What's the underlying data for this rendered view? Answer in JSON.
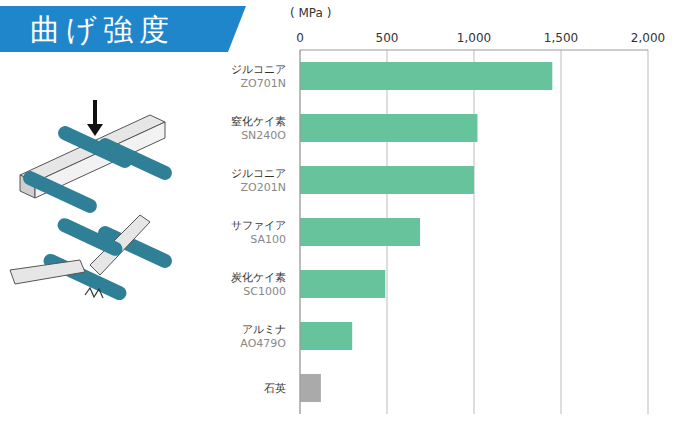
{
  "chart_data": {
    "type": "bar",
    "title": "曲げ強度",
    "x_label": "( MPa )",
    "orientation": "horizontal",
    "categories": [
      "ジルコニア\nZO701N",
      "窒化ケイ素\nSN240O",
      "ジルコニア\nZO201N",
      "サファイア\nSA100",
      "炭化ケイ素\nSC1000",
      "アルミナ\nAO479O",
      "石英"
    ],
    "values": [
      1450,
      1020,
      1000,
      690,
      490,
      300,
      120
    ],
    "colors": [
      "#66c39b",
      "#66c39b",
      "#66c39b",
      "#66c39b",
      "#66c39b",
      "#66c39b",
      "#aaaaaa"
    ],
    "xlim": [
      0,
      2000
    ],
    "xticks": [
      0,
      500,
      {
        "value": 1000,
        "label": "1,000"
      },
      {
        "value": 1500,
        "label": "1,500"
      },
      {
        "value": 2000,
        "label": "2,000"
      }
    ],
    "grid": true
  }
}
